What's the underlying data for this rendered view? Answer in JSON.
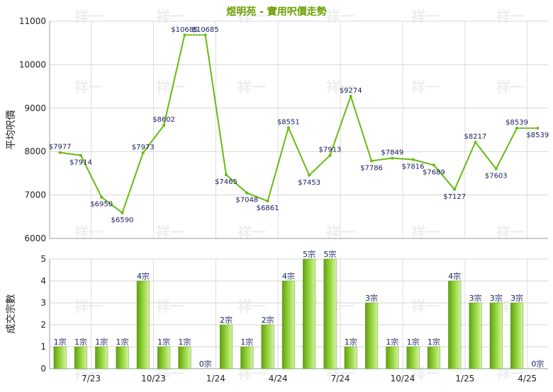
{
  "chart_data": [
    {
      "type": "line",
      "title": "煜明苑 - 實用呎價走勢",
      "ylabel": "平均呎價",
      "ylim": [
        6000,
        11000
      ],
      "yticks": [
        "6000",
        "7000",
        "8000",
        "9000",
        "10000",
        "11000"
      ],
      "grid": true,
      "series": [
        {
          "color": "#66bb11",
          "values": [
            7977,
            7914,
            6950,
            6590,
            7973,
            8602,
            10685,
            10685,
            7465,
            7048,
            6861,
            8551,
            7453,
            7913,
            9274,
            7786,
            7849,
            7816,
            7689,
            7127,
            8217,
            7603,
            8539,
            8539
          ],
          "labels": [
            "$7977",
            "$7914",
            "$6950",
            "$6590",
            "$7973",
            "$8602",
            "$10685",
            "$10685",
            "$7465",
            "$7048",
            "$6861",
            "$8551",
            "$7453",
            "$7913",
            "$9274",
            "$7786",
            "$7849",
            "$7816",
            "$7689",
            "$7127",
            "$8217",
            "$7603",
            "$8539",
            "$8539"
          ],
          "dotted_segments_after_index": [
            6,
            22
          ]
        }
      ]
    },
    {
      "type": "bar",
      "ylabel": "成交宗數",
      "ylim": [
        0,
        5
      ],
      "yticks": [
        "0",
        "1",
        "2",
        "3",
        "4",
        "5"
      ],
      "grid": true,
      "x_tick_labels": [
        {
          "label": "7/23",
          "after_index": 1
        },
        {
          "label": "10/23",
          "after_index": 4
        },
        {
          "label": "1/24",
          "after_index": 7
        },
        {
          "label": "4/24",
          "after_index": 10
        },
        {
          "label": "7/24",
          "after_index": 13
        },
        {
          "label": "10/24",
          "after_index": 16
        },
        {
          "label": "1/25",
          "after_index": 19
        },
        {
          "label": "4/25",
          "after_index": 22
        }
      ],
      "values": [
        1,
        1,
        1,
        1,
        4,
        1,
        1,
        0,
        2,
        1,
        2,
        4,
        5,
        5,
        1,
        3,
        1,
        1,
        1,
        4,
        3,
        3,
        3,
        0
      ],
      "labels": [
        "1宗",
        "1宗",
        "1宗",
        "1宗",
        "4宗",
        "1宗",
        "1宗",
        "0宗",
        "2宗",
        "1宗",
        "2宗",
        "4宗",
        "5宗",
        "5宗",
        "1宗",
        "3宗",
        "1宗",
        "1宗",
        "1宗",
        "4宗",
        "3宗",
        "3宗",
        "3宗",
        "0宗"
      ],
      "bar_colors": [
        "#5fa010",
        "#9bd844",
        "#d6f3a6"
      ]
    }
  ],
  "watermark": "祥一"
}
